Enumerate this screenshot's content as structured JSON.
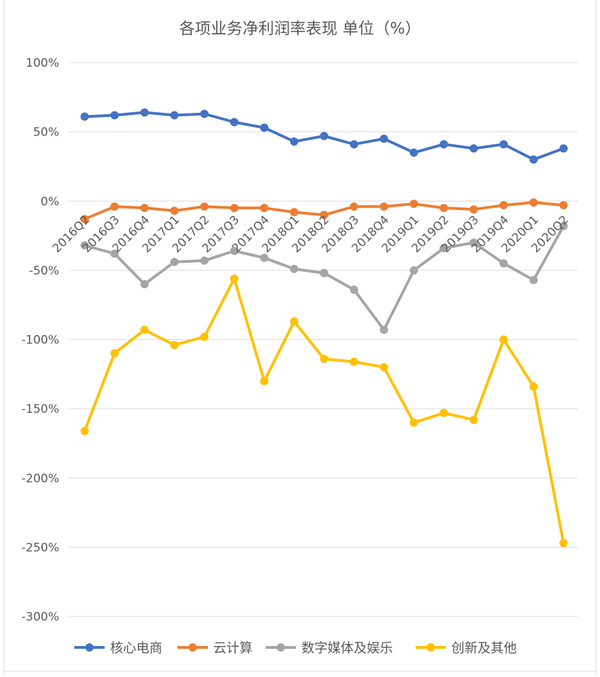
{
  "chart_data": {
    "type": "line",
    "title": "各项业务净利润率表现 单位（%）",
    "categories": [
      "2016Q2",
      "2016Q3",
      "2016Q4",
      "2017Q1",
      "2017Q2",
      "2017Q3",
      "2017Q4",
      "2018Q1",
      "2018Q2",
      "2018Q3",
      "2018Q4",
      "2019Q1",
      "2019Q2",
      "2019Q3",
      "2019Q4",
      "2020Q1",
      "2020Q2"
    ],
    "yticks": [
      "100%",
      "50%",
      "0%",
      "-50%",
      "-100%",
      "-150%",
      "-200%",
      "-250%",
      "-300%"
    ],
    "ylim": [
      -300,
      100
    ],
    "grid": true,
    "legend_position": "bottom",
    "series": [
      {
        "name": "核心电商",
        "color": "#4472c4",
        "values": [
          61,
          62,
          64,
          62,
          63,
          57,
          53,
          43,
          47,
          41,
          45,
          35,
          41,
          38,
          41,
          30,
          38
        ]
      },
      {
        "name": "云计算",
        "color": "#ed7d31",
        "values": [
          -13,
          -4,
          -5,
          -7,
          -4,
          -5,
          -5,
          -8,
          -10,
          -4,
          -4,
          -2,
          -5,
          -6,
          -3,
          -1,
          -3
        ]
      },
      {
        "name": "数字媒体及娱乐",
        "color": "#a5a5a5",
        "values": [
          -32,
          -38,
          -60,
          -44,
          -43,
          -36,
          -41,
          -49,
          -52,
          -64,
          -93,
          -50,
          -34,
          -30,
          -45,
          -57,
          -18
        ]
      },
      {
        "name": "创新及其他",
        "color": "#ffc000",
        "values": [
          -166,
          -110,
          -93,
          -104,
          -98,
          -56,
          -130,
          -87,
          -114,
          -116,
          -120,
          -160,
          -153,
          -158,
          -100,
          -134,
          -247
        ]
      }
    ]
  }
}
